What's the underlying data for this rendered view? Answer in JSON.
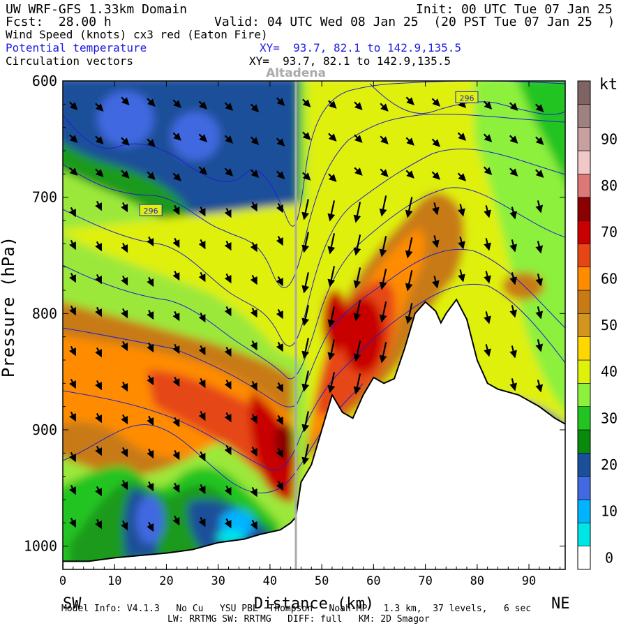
{
  "header": {
    "model": "UW WRF-GFS 1.33km Domain",
    "init": "Init: 00 UTC Tue 07 Jan 25",
    "fcst": "Fcst:  28.00 h",
    "valid": "Valid: 04 UTC Wed 08 Jan 25  (20 PST Tue 07 Jan 25  )",
    "field1": "Wind Speed (knots) cx3 red (Eaton Fire)",
    "field2": "Potential temperature",
    "field3": "Circulation vectors",
    "xy_blue": "XY=  93.7, 82.1 to 142.9,135.5",
    "xy_black": "XY=  93.7, 82.1 to 142.9,135.5"
  },
  "footer": {
    "line1": "Model Info: V4.1.3   No Cu   YSU PBL  Thompson   Noah-MP   1.3 km,  37 levels,   6 sec",
    "line2": "LW: RRTMG SW: RRTMG   DIFF: full   KM: 2D Smagor"
  },
  "colors": {
    "contour_line": "#2020d0",
    "marker_line": "#aaaaaa",
    "terrain_fill": "#ffffff"
  },
  "chart_data": {
    "type": "cross-section",
    "title": "",
    "xlabel": "Distance (km)",
    "ylabel": "Pressure (hPa)",
    "x_ticks": [
      0,
      10,
      20,
      30,
      40,
      50,
      60,
      70,
      80,
      90
    ],
    "y_ticks": [
      600,
      700,
      800,
      900,
      1000
    ],
    "xlim": [
      0,
      97
    ],
    "ylim": [
      1020,
      600
    ],
    "left_end_label": "SW",
    "right_end_label": "NE",
    "marker": {
      "label": "Altadena",
      "x": 45
    },
    "theta_labels": [
      {
        "text": "296",
        "x": 17,
        "p": 711
      },
      {
        "text": "296",
        "x": 78,
        "p": 614
      }
    ],
    "colorbar": {
      "unit": "kt",
      "tick_labels": [
        "0",
        "10",
        "20",
        "30",
        "40",
        "50",
        "60",
        "70",
        "80",
        "90"
      ],
      "levels": [
        0,
        5,
        10,
        15,
        20,
        25,
        30,
        35,
        40,
        45,
        50,
        55,
        60,
        65,
        70,
        75,
        80,
        85,
        90,
        95,
        100
      ],
      "colors": [
        "#ffffff",
        "#00e6e6",
        "#00b4ff",
        "#4169e1",
        "#1a4f99",
        "#0a8a0a",
        "#22c422",
        "#8cf03c",
        "#dff00a",
        "#ffd700",
        "#d2961e",
        "#c87a14",
        "#ff8c00",
        "#e64614",
        "#c80000",
        "#8b0000",
        "#dc7878",
        "#f0c8c8",
        "#c8a0a0",
        "#a08080",
        "#806464"
      ]
    },
    "terrain": [
      [
        0,
        1013
      ],
      [
        5,
        1013
      ],
      [
        10,
        1010
      ],
      [
        15,
        1008
      ],
      [
        20,
        1006
      ],
      [
        25,
        1003
      ],
      [
        30,
        997
      ],
      [
        35,
        994
      ],
      [
        38,
        990
      ],
      [
        42,
        986
      ],
      [
        44,
        980
      ],
      [
        45,
        975
      ],
      [
        46,
        945
      ],
      [
        48,
        930
      ],
      [
        50,
        900
      ],
      [
        52,
        870
      ],
      [
        54,
        885
      ],
      [
        56,
        890
      ],
      [
        58,
        870
      ],
      [
        60,
        855
      ],
      [
        62,
        860
      ],
      [
        64,
        856
      ],
      [
        66,
        830
      ],
      [
        68,
        800
      ],
      [
        70,
        790
      ],
      [
        72,
        798
      ],
      [
        73,
        808
      ],
      [
        74,
        800
      ],
      [
        76,
        788
      ],
      [
        78,
        805
      ],
      [
        80,
        840
      ],
      [
        82,
        860
      ],
      [
        84,
        865
      ],
      [
        88,
        870
      ],
      [
        92,
        880
      ],
      [
        95,
        890
      ],
      [
        97,
        895
      ]
    ],
    "wind_speed_regions_kt": [
      {
        "x_range": [
          0,
          40
        ],
        "p_range": [
          600,
          760
        ],
        "speed": 20
      },
      {
        "x_range": [
          0,
          40
        ],
        "p_range": [
          820,
          900
        ],
        "speed": 55
      },
      {
        "x_range": [
          38,
          46
        ],
        "p_range": [
          880,
          960
        ],
        "speed": 70
      },
      {
        "x_range": [
          48,
          64
        ],
        "p_range": [
          770,
          860
        ],
        "speed": 65
      },
      {
        "x_range": [
          10,
          38
        ],
        "p_range": [
          950,
          1000
        ],
        "speed": 15
      },
      {
        "x_range": [
          80,
          97
        ],
        "p_range": [
          600,
          700
        ],
        "speed": 35
      }
    ]
  }
}
